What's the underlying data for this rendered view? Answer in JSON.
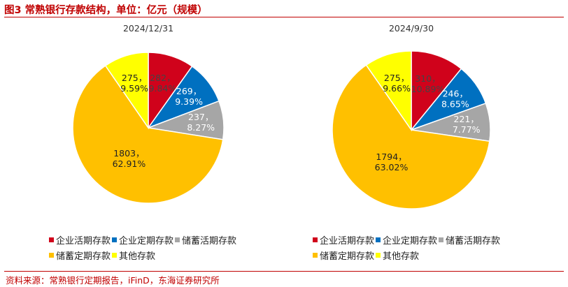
{
  "header": {
    "title": "图3  常熟银行存款结构，单位：亿元（规模）"
  },
  "footer": {
    "source": "资料来源：常熟银行定期报告，iFinD，东海证券研究所"
  },
  "colors": {
    "企业活期存款": "#d0021b",
    "企业定期存款": "#0070c0",
    "储蓄活期存款": "#a6a6a6",
    "储蓄定期存款": "#ffc000",
    "其他存款": "#ffff00"
  },
  "chart_data": [
    {
      "type": "pie",
      "title": "2024/12/31",
      "categories": [
        "企业活期存款",
        "企业定期存款",
        "储蓄活期存款",
        "储蓄定期存款",
        "其他存款"
      ],
      "values": [
        282,
        269,
        237,
        1803,
        275
      ],
      "percents": [
        "9.84%",
        "9.39%",
        "8.27%",
        "62.91%",
        "9.59%"
      ],
      "value_labels": [
        "282，",
        "269，",
        "237，",
        "1803，",
        "275，"
      ],
      "legend_position": "bottom"
    },
    {
      "type": "pie",
      "title": "2024/9/30",
      "categories": [
        "企业活期存款",
        "企业定期存款",
        "储蓄活期存款",
        "储蓄定期存款",
        "其他存款"
      ],
      "values": [
        310,
        246,
        221,
        1794,
        275
      ],
      "percents": [
        "10.89%",
        "8.65%",
        "7.77%",
        "63.02%",
        "9.66%"
      ],
      "value_labels": [
        "310，",
        "246，",
        "221，",
        "1794，",
        "275，"
      ],
      "legend_position": "bottom"
    }
  ]
}
